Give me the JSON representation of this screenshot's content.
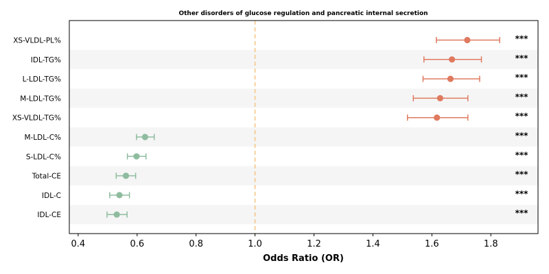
{
  "chart_data": {
    "type": "forest",
    "title": "Other disorders of glucose regulation and pancreatic internal secretion",
    "xlabel": "Odds Ratio (OR)",
    "xlim": [
      0.37,
      1.96
    ],
    "xticks": [
      "0.4",
      "0.6",
      "0.8",
      "1.0",
      "1.2",
      "1.4",
      "1.6",
      "1.8"
    ],
    "reference_line": 1.0,
    "colors": {
      "positive": "#e07a5f",
      "negative": "#8fbc9f",
      "reference": "#f5c583",
      "stripe": "#f5f5f5"
    },
    "rows": [
      {
        "label": "XS-VLDL-PL%",
        "or": 1.72,
        "lo": 1.615,
        "hi": 1.83,
        "sig": "***",
        "group": "positive"
      },
      {
        "label": "IDL-TG%",
        "or": 1.668,
        "lo": 1.573,
        "hi": 1.768,
        "sig": "***",
        "group": "positive"
      },
      {
        "label": "L-LDL-TG%",
        "or": 1.663,
        "lo": 1.57,
        "hi": 1.762,
        "sig": "***",
        "group": "positive"
      },
      {
        "label": "M-LDL-TG%",
        "or": 1.628,
        "lo": 1.537,
        "hi": 1.722,
        "sig": "***",
        "group": "positive"
      },
      {
        "label": "XS-VLDL-TG%",
        "or": 1.617,
        "lo": 1.517,
        "hi": 1.722,
        "sig": "***",
        "group": "positive"
      },
      {
        "label": "M-LDL-C%",
        "or": 0.627,
        "lo": 0.598,
        "hi": 0.658,
        "sig": "***",
        "group": "negative"
      },
      {
        "label": "S-LDL-C%",
        "or": 0.598,
        "lo": 0.567,
        "hi": 0.63,
        "sig": "***",
        "group": "negative"
      },
      {
        "label": "Total-CE",
        "or": 0.562,
        "lo": 0.529,
        "hi": 0.595,
        "sig": "***",
        "group": "negative"
      },
      {
        "label": "IDL-C",
        "or": 0.54,
        "lo": 0.507,
        "hi": 0.574,
        "sig": "***",
        "group": "negative"
      },
      {
        "label": "IDL-CE",
        "or": 0.531,
        "lo": 0.498,
        "hi": 0.566,
        "sig": "***",
        "group": "negative"
      }
    ]
  }
}
